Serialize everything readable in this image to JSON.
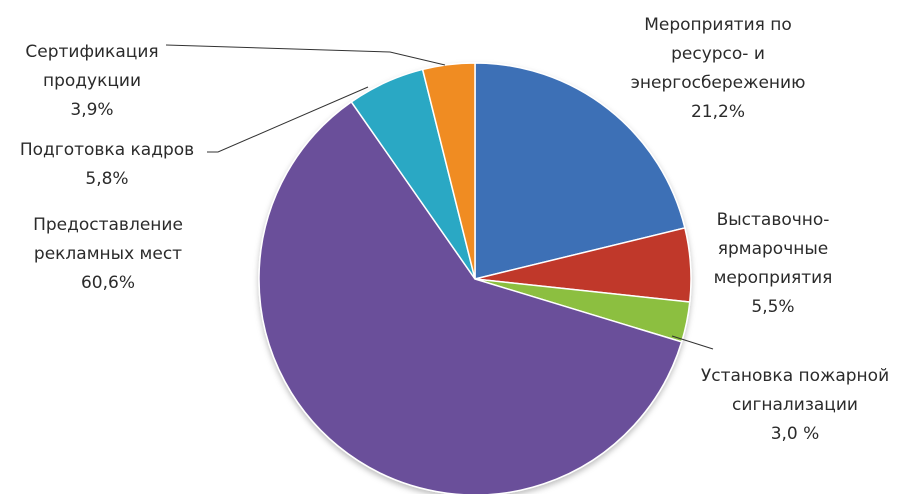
{
  "chart_data": {
    "type": "pie",
    "slices": [
      {
        "lines": [
          "Мероприятия по",
          "ресурсо- и",
          "энергосбережению",
          "21,2%"
        ],
        "value": 21.2,
        "color": "#3d6fb6"
      },
      {
        "lines": [
          "Выставочно-",
          "ярмарочные",
          "мероприятия",
          "5,5%"
        ],
        "value": 5.5,
        "color": "#c0392b"
      },
      {
        "lines": [
          "Установка пожарной",
          "сигнализации",
          "3,0 %"
        ],
        "value": 3.0,
        "color": "#8cbf3f"
      },
      {
        "lines": [
          "Предоставление",
          "рекламных мест",
          "60,6%"
        ],
        "value": 60.6,
        "color": "#6b4f9a"
      },
      {
        "lines": [
          "Подготовка кадров",
          "5,8%"
        ],
        "value": 5.8,
        "color": "#2aa8c4"
      },
      {
        "lines": [
          "Сертификация",
          "продукции",
          "3,9%"
        ],
        "value": 3.9,
        "color": "#f08c24"
      }
    ]
  }
}
